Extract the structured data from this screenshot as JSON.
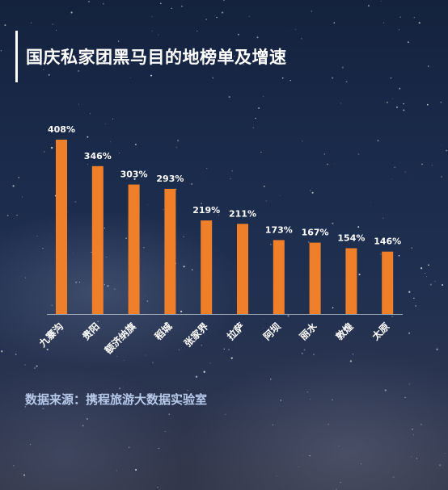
{
  "title": "国庆私家团黑马目的地榜单及增速",
  "source": "数据来源：携程旅游大数据实验室",
  "colors": {
    "bar": "#f07f2a",
    "text": "#ffffff",
    "source": "#b7c9e9"
  },
  "chart_data": {
    "type": "bar",
    "categories": [
      "九寨沟",
      "贵阳",
      "额济纳旗",
      "稻城",
      "张家界",
      "拉萨",
      "阿坝",
      "丽水",
      "敦煌",
      "太原"
    ],
    "values": [
      408,
      346,
      303,
      293,
      219,
      211,
      173,
      167,
      154,
      146
    ],
    "value_labels": [
      "408%",
      "346%",
      "303%",
      "293%",
      "219%",
      "211%",
      "173%",
      "167%",
      "154%",
      "146%"
    ],
    "unit": "%",
    "ylim": [
      0,
      408
    ],
    "grid": false,
    "legend": "none"
  }
}
